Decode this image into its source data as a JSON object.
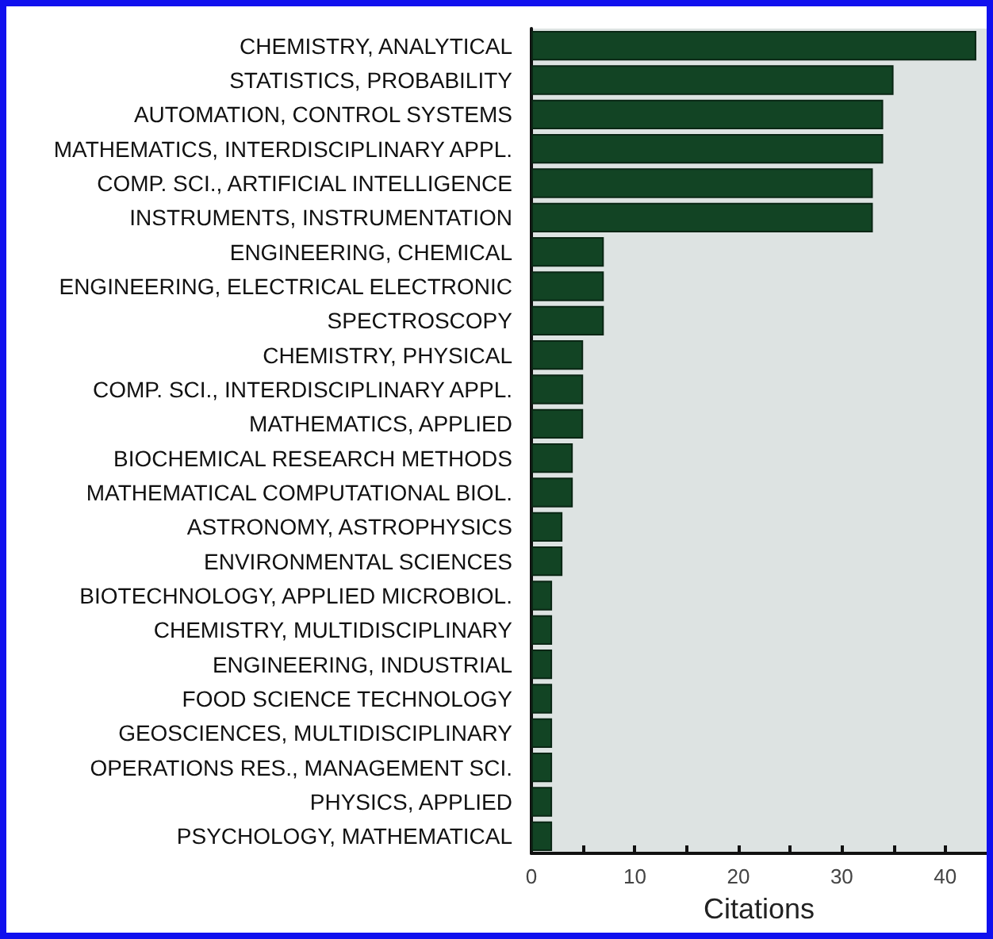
{
  "chart_data": {
    "type": "bar",
    "orientation": "horizontal",
    "xlabel": "Citations",
    "categories": [
      "CHEMISTRY, ANALYTICAL",
      "STATISTICS, PROBABILITY",
      "AUTOMATION, CONTROL SYSTEMS",
      "MATHEMATICS, INTERDISCIPLINARY APPL.",
      "COMP. SCI., ARTIFICIAL INTELLIGENCE",
      "INSTRUMENTS, INSTRUMENTATION",
      "ENGINEERING, CHEMICAL",
      "ENGINEERING, ELECTRICAL ELECTRONIC",
      "SPECTROSCOPY",
      "CHEMISTRY, PHYSICAL",
      "COMP. SCI., INTERDISCIPLINARY APPL.",
      "MATHEMATICS, APPLIED",
      "BIOCHEMICAL RESEARCH METHODS",
      "MATHEMATICAL COMPUTATIONAL BIOL.",
      "ASTRONOMY, ASTROPHYSICS",
      "ENVIRONMENTAL SCIENCES",
      "BIOTECHNOLOGY, APPLIED MICROBIOL.",
      "CHEMISTRY, MULTIDISCIPLINARY",
      "ENGINEERING, INDUSTRIAL",
      "FOOD SCIENCE TECHNOLOGY",
      "GEOSCIENCES, MULTIDISCIPLINARY",
      "OPERATIONS RES., MANAGEMENT SCI.",
      "PHYSICS, APPLIED",
      "PSYCHOLOGY, MATHEMATICAL"
    ],
    "values": [
      43,
      35,
      34,
      34,
      33,
      33,
      7,
      7,
      7,
      5,
      5,
      5,
      4,
      4,
      3,
      3,
      2,
      2,
      2,
      2,
      2,
      2,
      2,
      2
    ],
    "color": "#124424",
    "xlim": [
      0,
      44
    ],
    "xticks": [
      0,
      {
        "value": 5,
        "label": null
      },
      10,
      {
        "value": 15,
        "label": null
      },
      20,
      {
        "value": 25,
        "label": null
      },
      30,
      {
        "value": 35,
        "label": null
      },
      40
    ]
  }
}
